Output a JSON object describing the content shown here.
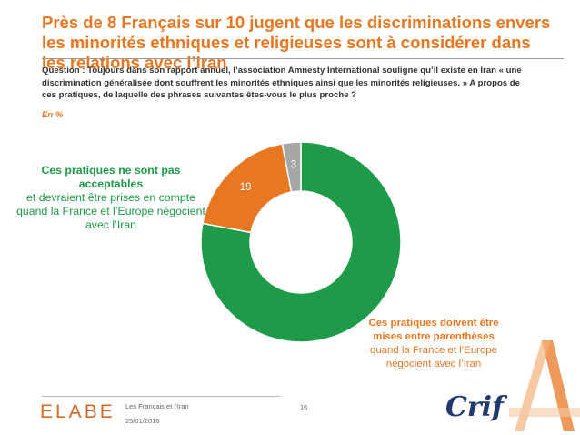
{
  "title": "Près de 8 Français sur 10 jugent que les discriminations envers les minorités ethniques et religieuses sont à considérer dans les relations avec l’Iran",
  "question": "Question : Toujours dans son rapport annuel, l’association Amnesty International souligne qu’il existe en Iran « une discrimination généralisée dont souffrent les minorités ethniques ainsi que les minorités religieuses. » A propos de ces pratiques, de laquelle des phrases suivantes êtes-vous le plus proche ?",
  "unit_note": "En %",
  "labels": {
    "green_bold": "Ces pratiques ne sont pas acceptables",
    "green_rest": "et devraient être prises en compte quand la France et l’Europe négocient avec l’Iran",
    "orange_bold": "Ces pratiques doivent être mises entre parenthèses",
    "orange_rest": "quand la France et l’Europe négocient avec l’Iran"
  },
  "chart_data": {
    "type": "pie",
    "donut": true,
    "categories": [
      "Ces pratiques ne sont pas acceptables et devraient être prises en compte quand la France et l’Europe négocient avec l’Iran",
      "Ces pratiques doivent être mises entre parenthèses quand la France et l’Europe négocient avec l’Iran",
      ""
    ],
    "values": [
      78,
      19,
      3
    ],
    "value_labels": [
      "78",
      "19",
      "3"
    ],
    "colors": [
      "#1e9b48",
      "#e87722",
      "#a6a6a6"
    ],
    "unit": "%"
  },
  "footer": {
    "brand": "ELABE",
    "source": "Les Français et l’Iran",
    "date": "25/01/2016",
    "page": "16",
    "partner": "Crif"
  },
  "colors": {
    "accent": "#e87722",
    "green": "#1e9b48",
    "text": "#333333"
  }
}
